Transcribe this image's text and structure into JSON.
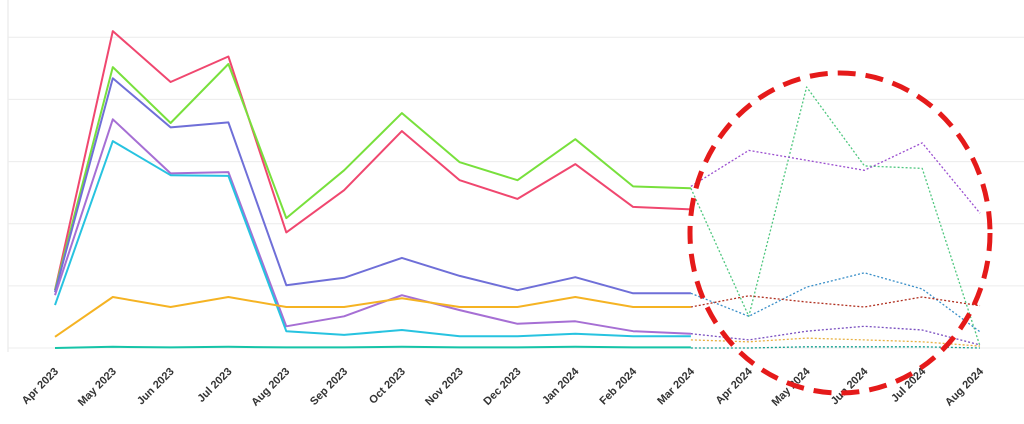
{
  "chart_data": {
    "type": "line",
    "categories": [
      "Apr 2023",
      "May 2023",
      "Jun 2023",
      "Jul 2023",
      "Aug 2023",
      "Sep 2023",
      "Oct 2023",
      "Nov 2023",
      "Dec 2023",
      "Jan 2024",
      "Feb 2024",
      "Mar 2024",
      "Apr 2024",
      "May 2024",
      "Jun 2024",
      "Jul 2024",
      "Aug 2024"
    ],
    "ylim": [
      0,
      5.6
    ],
    "yticks": [
      0,
      1,
      2,
      3,
      4,
      5
    ],
    "grid": true,
    "series": [
      {
        "color": "#f0476f",
        "style": "solid",
        "values": [
          0.93,
          5.1,
          4.28,
          4.69,
          1.86,
          2.54,
          3.49,
          2.7,
          2.4,
          2.96,
          2.27,
          2.23,
          null,
          null,
          null,
          null,
          null
        ]
      },
      {
        "color": "#78e03c",
        "style": "solid",
        "values": [
          0.93,
          4.52,
          3.62,
          4.57,
          2.09,
          2.86,
          3.78,
          2.99,
          2.7,
          3.36,
          2.6,
          2.57,
          null,
          null,
          null,
          null,
          null
        ]
      },
      {
        "color": "#6f6fd8",
        "style": "solid",
        "values": [
          0.9,
          4.34,
          3.55,
          3.63,
          1.01,
          1.13,
          1.45,
          1.16,
          0.93,
          1.14,
          0.88,
          0.88,
          null,
          null,
          null,
          null,
          null
        ]
      },
      {
        "color": "#a66fd4",
        "style": "solid",
        "values": [
          0.85,
          3.68,
          2.81,
          2.83,
          0.35,
          0.51,
          0.85,
          0.61,
          0.39,
          0.43,
          0.27,
          0.23,
          null,
          null,
          null,
          null,
          null
        ]
      },
      {
        "color": "#27c3e0",
        "style": "solid",
        "values": [
          0.69,
          3.33,
          2.78,
          2.77,
          0.27,
          0.21,
          0.29,
          0.19,
          0.19,
          0.23,
          0.19,
          0.19,
          null,
          null,
          null,
          null,
          null
        ]
      },
      {
        "color": "#f5b323",
        "style": "solid",
        "values": [
          0.18,
          0.82,
          0.66,
          0.82,
          0.66,
          0.66,
          0.8,
          0.66,
          0.66,
          0.82,
          0.66,
          0.66,
          null,
          null,
          null,
          null,
          null
        ]
      },
      {
        "color": "#16c4a8",
        "style": "solid",
        "values": [
          0.0,
          0.02,
          0.01,
          0.02,
          0.01,
          0.01,
          0.02,
          0.01,
          0.01,
          0.02,
          0.01,
          0.01,
          null,
          null,
          null,
          null,
          null
        ]
      },
      {
        "color": "#4fc77f",
        "style": "dotted",
        "values": [
          null,
          null,
          null,
          null,
          null,
          null,
          null,
          null,
          null,
          null,
          null,
          2.57,
          0.51,
          4.2,
          2.93,
          2.89,
          0.03
        ]
      },
      {
        "color": "#9b4fd0",
        "style": "dotted",
        "values": [
          null,
          null,
          null,
          null,
          null,
          null,
          null,
          null,
          null,
          null,
          null,
          2.6,
          3.18,
          3.02,
          2.86,
          3.3,
          2.17
        ]
      },
      {
        "color": "#3a8fc8",
        "style": "dotted",
        "values": [
          null,
          null,
          null,
          null,
          null,
          null,
          null,
          null,
          null,
          null,
          null,
          0.88,
          0.51,
          0.98,
          1.21,
          0.95,
          0.26
        ]
      },
      {
        "color": "#b03020",
        "style": "dotted",
        "values": [
          null,
          null,
          null,
          null,
          null,
          null,
          null,
          null,
          null,
          null,
          null,
          0.66,
          0.84,
          0.74,
          0.66,
          0.82,
          0.68
        ]
      },
      {
        "color": "#7a4fc0",
        "style": "dotted",
        "values": [
          null,
          null,
          null,
          null,
          null,
          null,
          null,
          null,
          null,
          null,
          null,
          0.23,
          0.13,
          0.27,
          0.35,
          0.29,
          0.05
        ]
      },
      {
        "color": "#e8b040",
        "style": "dotted",
        "values": [
          null,
          null,
          null,
          null,
          null,
          null,
          null,
          null,
          null,
          null,
          null,
          0.13,
          0.1,
          0.16,
          0.13,
          0.1,
          0.03
        ]
      },
      {
        "color": "#16a090",
        "style": "dotted",
        "values": [
          null,
          null,
          null,
          null,
          null,
          null,
          null,
          null,
          null,
          null,
          null,
          0.0,
          0.0,
          0.02,
          0.02,
          0.02,
          0.0
        ]
      }
    ]
  }
}
